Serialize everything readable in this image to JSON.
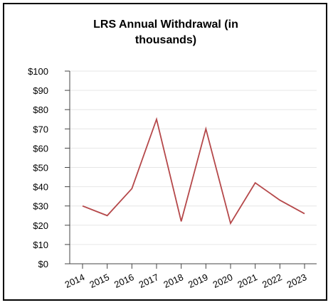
{
  "chart_data": {
    "type": "line",
    "title": "LRS Annual Withdrawal (in thousands)",
    "categories": [
      "2014",
      "2015",
      "2016",
      "2017",
      "2018",
      "2019",
      "2020",
      "2021",
      "2022",
      "2023"
    ],
    "values": [
      30,
      25,
      39,
      75,
      22,
      70,
      21,
      42,
      33,
      26
    ],
    "color": "#b5484a",
    "ylim": [
      0,
      100
    ],
    "yticks": [
      {
        "value": 0,
        "label": "$0"
      },
      {
        "value": 10,
        "label": "$10"
      },
      {
        "value": 20,
        "label": "$20"
      },
      {
        "value": 30,
        "label": "$30"
      },
      {
        "value": 40,
        "label": "$40"
      },
      {
        "value": 50,
        "label": "$50"
      },
      {
        "value": 60,
        "label": "$60"
      },
      {
        "value": 70,
        "label": "$70"
      },
      {
        "value": 80,
        "label": "$80"
      },
      {
        "value": 90,
        "label": "$90"
      },
      {
        "value": 100,
        "label": "$100"
      }
    ],
    "grid": true
  }
}
